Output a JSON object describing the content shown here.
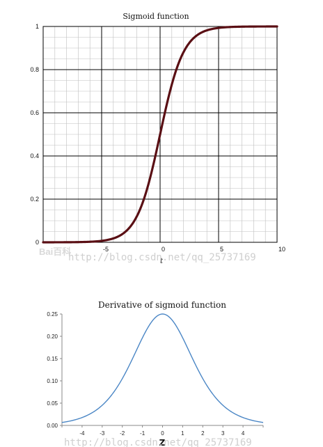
{
  "chart_data": [
    {
      "type": "line",
      "title": "Sigmoid function",
      "xlabel": "t",
      "ylabel": "",
      "xlim": [
        -10,
        10
      ],
      "ylim": [
        0,
        1
      ],
      "x_ticks": [
        -5,
        0,
        5,
        10
      ],
      "y_ticks": [
        0,
        0.2,
        0.4,
        0.6,
        0.8,
        1
      ],
      "y_tick_labels": [
        "0",
        "0.2",
        "0.4",
        "0.6",
        "0.8",
        "1"
      ],
      "grid": true,
      "line_color": "#5a0f14",
      "series": [
        {
          "x": [
            -10,
            -8,
            -6,
            -5,
            -4,
            -3,
            -2,
            -1,
            0,
            1,
            2,
            3,
            4,
            5,
            6,
            8,
            10
          ],
          "y": [
            4.54e-05,
            0.000335,
            0.00247,
            0.00669,
            0.018,
            0.0474,
            0.119,
            0.269,
            0.5,
            0.731,
            0.881,
            0.953,
            0.982,
            0.993,
            0.998,
            0.9997,
            1.0
          ]
        }
      ]
    },
    {
      "type": "line",
      "title": "Derivative of sigmoid function",
      "xlabel": "Z",
      "ylabel": "",
      "xlim": [
        -5,
        5
      ],
      "ylim": [
        0,
        0.25
      ],
      "x_ticks": [
        -4,
        -3,
        -2,
        -1,
        0,
        1,
        2,
        3,
        4
      ],
      "y_ticks": [
        0,
        0.05,
        0.1,
        0.15,
        0.2,
        0.25
      ],
      "y_tick_labels": [
        "0.00",
        "0.05",
        "0.10",
        "0.15",
        "0.20",
        "0.25"
      ],
      "grid": false,
      "line_color": "#4a86c5",
      "series": [
        {
          "x": [
            -5,
            -4.5,
            -4,
            -3.5,
            -3,
            -2.5,
            -2,
            -1.5,
            -1,
            -0.5,
            0,
            0.5,
            1,
            1.5,
            2,
            2.5,
            3,
            3.5,
            4,
            4.5,
            5
          ],
          "y": [
            0.0066,
            0.0109,
            0.0177,
            0.0285,
            0.0452,
            0.0701,
            0.105,
            0.149,
            0.197,
            0.235,
            0.25,
            0.235,
            0.197,
            0.149,
            0.105,
            0.0701,
            0.0452,
            0.0285,
            0.0177,
            0.0109,
            0.0066
          ]
        }
      ]
    }
  ],
  "watermarks": {
    "logo": "Bai百科",
    "url": "http://blog.csdn.net/qq_25737169"
  }
}
